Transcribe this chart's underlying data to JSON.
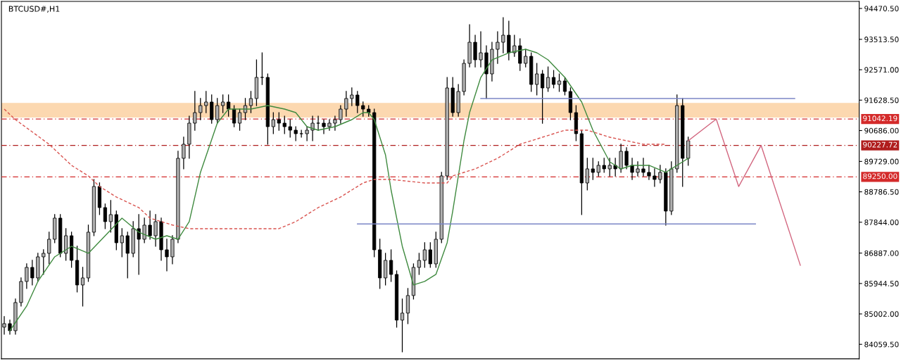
{
  "chart_data": {
    "type": "candlestick",
    "title": "BTCUSD#,H1",
    "tick_labels": "y",
    "grid": false,
    "categories": [
      null,
      null,
      null,
      null,
      null,
      null,
      null,
      null,
      null,
      null,
      null,
      null,
      null,
      null,
      null,
      null,
      null,
      null,
      null,
      null,
      null,
      null,
      null,
      null,
      null,
      null,
      null,
      null,
      null,
      null,
      null,
      null,
      null,
      null,
      null,
      null,
      null,
      null,
      null,
      null,
      null,
      null,
      null,
      null,
      null,
      null,
      null,
      null,
      null,
      null,
      null,
      null,
      null,
      null,
      null,
      null,
      null,
      null,
      null,
      null,
      null,
      null,
      null,
      null,
      null,
      null,
      null,
      null,
      null,
      null,
      null,
      null,
      null,
      null,
      null,
      null,
      null,
      null,
      null,
      null,
      null,
      null,
      null,
      null,
      null,
      null,
      null,
      null,
      null,
      null,
      null,
      null,
      null,
      null,
      null,
      null,
      null,
      null,
      null,
      null,
      null,
      null,
      null,
      null,
      null,
      null,
      null,
      null,
      null,
      null,
      null,
      null,
      null,
      null,
      null,
      null,
      null,
      null,
      null,
      null,
      null,
      null,
      null,
      null,
      null,
      null,
      null,
      null,
      null,
      null,
      null,
      null,
      null,
      null,
      null,
      null,
      null,
      null,
      null,
      null,
      null,
      null,
      null,
      null,
      null,
      null,
      null,
      null,
      null,
      null,
      null,
      null,
      null
    ],
    "ylim": [
      83609,
      94688
    ],
    "yticks": [
      {
        "value": 94470.5,
        "label": "94470.50"
      },
      {
        "value": 93513.5,
        "label": "93513.50"
      },
      {
        "value": 92571,
        "label": "92571.00"
      },
      {
        "value": 91628.5,
        "label": "91628.50"
      },
      {
        "value": 90686,
        "label": "90686.00"
      },
      {
        "value": 89729,
        "label": "89729.00"
      },
      {
        "value": 88786.5,
        "label": "88786.50"
      },
      {
        "value": 87844,
        "label": "87844.00"
      },
      {
        "value": 86887,
        "label": "86887.00"
      },
      {
        "value": 85944.5,
        "label": "85944.50"
      },
      {
        "value": 85002,
        "label": "85002.00"
      },
      {
        "value": 84059.5,
        "label": "84059.50"
      }
    ],
    "ref_lines": [
      {
        "axis": "y",
        "value": 91042.19,
        "label": "91042.19",
        "color": "#d42a2a",
        "line_style": "dashdot"
      },
      {
        "axis": "y",
        "value": 90227.72,
        "label": "90227.72",
        "color": "#b01e1e",
        "line_style": "dashdot"
      },
      {
        "axis": "y",
        "value": 89250.0,
        "label": "89250.00",
        "color": "#d42a2a",
        "line_style": "dashdot"
      }
    ],
    "bands": [
      {
        "axis": "y",
        "from": 91090,
        "to": 91540,
        "color": "#fcd8b0"
      }
    ],
    "ohlc": [
      [
        84591,
        84918,
        84372,
        84700
      ],
      [
        84700,
        84809,
        84372,
        84481
      ],
      [
        84481,
        85463,
        84372,
        85354
      ],
      [
        85354,
        86117,
        85245,
        86008
      ],
      [
        86008,
        86553,
        85790,
        86444
      ],
      [
        86444,
        86662,
        85899,
        86117
      ],
      [
        86117,
        86880,
        86008,
        86771
      ],
      [
        86771,
        86989,
        86226,
        86880
      ],
      [
        86880,
        87535,
        86553,
        87316
      ],
      [
        87316,
        88080,
        87207,
        87971
      ],
      [
        87971,
        88080,
        86771,
        86880
      ],
      [
        86880,
        87644,
        86662,
        87425
      ],
      [
        87425,
        87535,
        86444,
        86662
      ],
      [
        86662,
        87098,
        85681,
        85899
      ],
      [
        85899,
        86444,
        85245,
        86117
      ],
      [
        86117,
        87753,
        86008,
        87535
      ],
      [
        87535,
        89170,
        87425,
        88952
      ],
      [
        88952,
        89061,
        88080,
        88298
      ],
      [
        88298,
        88407,
        87644,
        87862
      ],
      [
        87862,
        88516,
        87535,
        88080
      ],
      [
        88080,
        88189,
        86989,
        87207
      ],
      [
        87207,
        87644,
        86771,
        87425
      ],
      [
        87425,
        87535,
        86117,
        86880
      ],
      [
        86880,
        87862,
        86771,
        87644
      ],
      [
        87644,
        88080,
        86226,
        87316
      ],
      [
        87316,
        87971,
        87207,
        87753
      ],
      [
        87753,
        88189,
        87316,
        87425
      ],
      [
        87425,
        88080,
        87098,
        87862
      ],
      [
        87862,
        87971,
        86662,
        86989
      ],
      [
        86989,
        87316,
        86335,
        86771
      ],
      [
        86771,
        87425,
        86553,
        87316
      ],
      [
        87316,
        90043,
        87207,
        89825
      ],
      [
        89825,
        90479,
        89498,
        90261
      ],
      [
        90261,
        91133,
        89825,
        90915
      ],
      [
        90915,
        91897,
        90697,
        91242
      ],
      [
        91242,
        91679,
        91024,
        91460
      ],
      [
        91460,
        91897,
        91242,
        91570
      ],
      [
        91570,
        91788,
        90915,
        91024
      ],
      [
        91024,
        91679,
        90915,
        91460
      ],
      [
        91460,
        91788,
        91242,
        91570
      ],
      [
        91570,
        91788,
        91133,
        91351
      ],
      [
        91351,
        91460,
        90806,
        90915
      ],
      [
        90915,
        91351,
        90697,
        91242
      ],
      [
        91242,
        91679,
        91024,
        91460
      ],
      [
        91460,
        91897,
        91242,
        91679
      ],
      [
        91679,
        92878,
        91460,
        92333
      ],
      [
        92333,
        93096,
        92115,
        92333
      ],
      [
        92333,
        92442,
        90261,
        90806
      ],
      [
        90806,
        91242,
        90588,
        91024
      ],
      [
        91024,
        91242,
        90697,
        90915
      ],
      [
        90915,
        91133,
        90588,
        90806
      ],
      [
        90806,
        91024,
        90479,
        90697
      ],
      [
        90697,
        90806,
        90370,
        90588
      ],
      [
        90588,
        90697,
        90479,
        90588
      ],
      [
        90588,
        90806,
        90370,
        90697
      ],
      [
        90697,
        91133,
        90370,
        90915
      ],
      [
        90915,
        91133,
        90697,
        90915
      ],
      [
        90915,
        91024,
        90588,
        90806
      ],
      [
        90806,
        91024,
        90697,
        90915
      ],
      [
        90915,
        91133,
        90697,
        91024
      ],
      [
        91024,
        91460,
        90915,
        91351
      ],
      [
        91351,
        91897,
        91133,
        91679
      ],
      [
        91679,
        92006,
        91460,
        91788
      ],
      [
        91788,
        91897,
        91242,
        91460
      ],
      [
        91460,
        91570,
        91133,
        91351
      ],
      [
        91351,
        91460,
        91133,
        91242
      ],
      [
        91242,
        91351,
        86771,
        86989
      ],
      [
        86989,
        87316,
        85790,
        86117
      ],
      [
        86117,
        86880,
        85899,
        86662
      ],
      [
        86662,
        86989,
        86008,
        86226
      ],
      [
        86226,
        86335,
        84591,
        84809
      ],
      [
        84809,
        85463,
        83827,
        85027
      ],
      [
        85027,
        85790,
        84700,
        85572
      ],
      [
        85572,
        86553,
        85463,
        86444
      ],
      [
        86444,
        86880,
        86226,
        86662
      ],
      [
        86662,
        87207,
        86444,
        86989
      ],
      [
        86989,
        87207,
        86444,
        86553
      ],
      [
        86553,
        87535,
        86444,
        87316
      ],
      [
        87316,
        89389,
        87207,
        89279
      ],
      [
        89279,
        92333,
        89170,
        92006
      ],
      [
        92006,
        92333,
        91133,
        91242
      ],
      [
        91242,
        92115,
        91133,
        91897
      ],
      [
        91897,
        92878,
        91788,
        92769
      ],
      [
        92769,
        93969,
        92660,
        93423
      ],
      [
        93423,
        93642,
        92660,
        92878
      ],
      [
        92878,
        93751,
        92660,
        93096
      ],
      [
        93096,
        93314,
        91679,
        92442
      ],
      [
        92442,
        93423,
        92224,
        93205
      ],
      [
        93205,
        93751,
        92769,
        93423
      ],
      [
        93423,
        94187,
        93096,
        93642
      ],
      [
        93642,
        94078,
        92878,
        93096
      ],
      [
        93096,
        93642,
        92987,
        93314
      ],
      [
        93314,
        93532,
        92551,
        92769
      ],
      [
        92769,
        93205,
        92660,
        92987
      ],
      [
        92987,
        93096,
        91897,
        92115
      ],
      [
        92115,
        92769,
        91788,
        92442
      ],
      [
        92442,
        92551,
        90915,
        92006
      ],
      [
        92006,
        92660,
        91897,
        92333
      ],
      [
        92333,
        92551,
        92006,
        92115
      ],
      [
        92115,
        92442,
        91897,
        92224
      ],
      [
        92224,
        92333,
        91788,
        91897
      ],
      [
        91897,
        92006,
        91024,
        91242
      ],
      [
        91242,
        91460,
        90370,
        90588
      ],
      [
        90588,
        90697,
        88080,
        89061
      ],
      [
        89061,
        89825,
        88843,
        89498
      ],
      [
        89498,
        89825,
        89170,
        89389
      ],
      [
        89389,
        89716,
        89279,
        89607
      ],
      [
        89607,
        89825,
        89389,
        89498
      ],
      [
        89498,
        89825,
        89279,
        89607
      ],
      [
        89607,
        89825,
        89279,
        89498
      ],
      [
        89498,
        90261,
        89389,
        90043
      ],
      [
        90043,
        90152,
        89498,
        89607
      ],
      [
        89607,
        89825,
        89170,
        89389
      ],
      [
        89389,
        89716,
        89279,
        89498
      ],
      [
        89498,
        89825,
        89279,
        89389
      ],
      [
        89389,
        89607,
        89170,
        89279
      ],
      [
        89279,
        89498,
        88952,
        89170
      ],
      [
        89170,
        89607,
        89061,
        89389
      ],
      [
        89389,
        89498,
        87753,
        88189
      ],
      [
        88189,
        89716,
        88080,
        89498
      ],
      [
        89498,
        91788,
        89389,
        91460
      ],
      [
        91460,
        91679,
        88952,
        89825
      ],
      [
        89825,
        90479,
        89607,
        90370
      ],
      null,
      null,
      null,
      null,
      null,
      null,
      null,
      null,
      null,
      null,
      null,
      null,
      null,
      null,
      null,
      null,
      null,
      null,
      null,
      null,
      null,
      null,
      null,
      null,
      null,
      null,
      null,
      null,
      null,
      null
    ],
    "series": [
      {
        "type": "line",
        "color": "#3f8a3f",
        "line_style": "solid",
        "values": [
          null,
          84481,
          null,
          null,
          85245,
          null,
          86008,
          null,
          null,
          86771,
          null,
          null,
          87098,
          null,
          null,
          86880,
          null,
          null,
          87425,
          null,
          null,
          87971,
          null,
          null,
          87535,
          null,
          null,
          87316,
          null,
          87425,
          null,
          87316,
          null,
          87862,
          null,
          89389,
          null,
          null,
          90915,
          null,
          91351,
          null,
          null,
          null,
          91351,
          null,
          null,
          91460,
          null,
          null,
          91351,
          null,
          91242,
          null,
          90806,
          null,
          90697,
          null,
          null,
          90806,
          null,
          null,
          91024,
          null,
          91242,
          91242,
          91024,
          null,
          89934,
          88843,
          null,
          87098,
          null,
          85899,
          null,
          86008,
          null,
          86226,
          null,
          87207,
          88189,
          null,
          90370,
          91242,
          null,
          92333,
          null,
          92878,
          null,
          null,
          93096,
          null,
          null,
          93205,
          null,
          93096,
          null,
          92878,
          null,
          null,
          92333,
          null,
          null,
          91570,
          null,
          90697,
          null,
          null,
          89716,
          null,
          89498,
          null,
          89607,
          null,
          null,
          89607,
          null,
          null,
          89389,
          null,
          null,
          89716,
          89825,
          null,
          null,
          null,
          null,
          null,
          null,
          null,
          null,
          null,
          null,
          null,
          null,
          null,
          null,
          null,
          null,
          null,
          null,
          null,
          null,
          null,
          null,
          null,
          null,
          null,
          null,
          null,
          null,
          null,
          null
        ]
      },
      {
        "type": "line",
        "color": "#d9534f",
        "line_style": "dashed",
        "values": [
          91351,
          null,
          91024,
          null,
          null,
          null,
          null,
          null,
          90261,
          null,
          null,
          null,
          89607,
          null,
          null,
          89279,
          null,
          88952,
          null,
          null,
          88625,
          null,
          null,
          null,
          88298,
          null,
          87971,
          null,
          null,
          null,
          87757,
          null,
          null,
          87644,
          null,
          null,
          null,
          87644,
          null,
          null,
          null,
          87644,
          null,
          null,
          87644,
          null,
          null,
          null,
          null,
          87644,
          null,
          null,
          87862,
          null,
          null,
          null,
          88298,
          null,
          null,
          null,
          88625,
          null,
          null,
          null,
          89061,
          null,
          89170,
          null,
          null,
          89170,
          null,
          null,
          null,
          null,
          null,
          89061,
          null,
          null,
          null,
          89061,
          89279,
          null,
          null,
          null,
          89498,
          null,
          null,
          null,
          89825,
          null,
          null,
          null,
          90261,
          null,
          null,
          null,
          90479,
          null,
          null,
          null,
          90697,
          null,
          90697,
          null,
          90697,
          null,
          null,
          null,
          90479,
          null,
          null,
          null,
          null,
          null,
          90261,
          null,
          null,
          null,
          90261,
          null,
          null,
          null,
          null,
          null,
          null,
          null,
          null,
          null,
          null,
          null,
          null,
          null,
          null,
          null,
          null,
          null,
          null,
          null,
          null,
          null,
          null,
          null,
          null,
          null,
          null,
          null,
          null,
          null,
          null,
          null,
          null,
          null,
          null
        ]
      },
      {
        "type": "line",
        "color": "#7b86c6",
        "line_style": "solid",
        "values": [
          null,
          null,
          null,
          null,
          null,
          null,
          null,
          null,
          null,
          null,
          null,
          null,
          null,
          null,
          null,
          null,
          null,
          null,
          null,
          null,
          null,
          null,
          null,
          null,
          null,
          null,
          null,
          null,
          null,
          null,
          null,
          null,
          null,
          null,
          null,
          null,
          null,
          null,
          null,
          null,
          null,
          null,
          null,
          null,
          null,
          null,
          null,
          null,
          null,
          null,
          null,
          null,
          null,
          null,
          null,
          null,
          null,
          null,
          null,
          null,
          null,
          null,
          null,
          null,
          null,
          null,
          null,
          null,
          null,
          null,
          null,
          null,
          null,
          null,
          null,
          null,
          null,
          null,
          null,
          null,
          null,
          null,
          null,
          null,
          null,
          91679,
          null,
          null,
          null,
          null,
          null,
          null,
          null,
          null,
          null,
          null,
          null,
          null,
          null,
          null,
          null,
          null,
          null,
          null,
          null,
          null,
          null,
          null,
          null,
          null,
          null,
          null,
          null,
          null,
          null,
          null,
          null,
          null,
          null,
          null,
          null,
          null,
          null,
          null,
          null,
          null,
          null,
          null,
          null,
          null,
          null,
          null,
          null,
          null,
          null,
          null,
          null,
          null,
          null,
          null,
          null,
          91679,
          null,
          null,
          null,
          null,
          null,
          null,
          null,
          null,
          null,
          null,
          null
        ]
      },
      {
        "type": "line",
        "color": "#7b86c6",
        "line_style": "solid",
        "values": [
          null,
          null,
          null,
          null,
          null,
          null,
          null,
          null,
          null,
          null,
          null,
          null,
          null,
          null,
          null,
          null,
          null,
          null,
          null,
          null,
          null,
          null,
          null,
          null,
          null,
          null,
          null,
          null,
          null,
          null,
          null,
          null,
          null,
          null,
          null,
          null,
          null,
          null,
          null,
          null,
          null,
          null,
          null,
          null,
          null,
          null,
          null,
          null,
          null,
          null,
          null,
          null,
          null,
          null,
          null,
          null,
          null,
          null,
          null,
          null,
          null,
          null,
          null,
          87790,
          null,
          null,
          null,
          null,
          null,
          null,
          null,
          null,
          null,
          null,
          null,
          null,
          null,
          null,
          null,
          null,
          null,
          null,
          null,
          null,
          null,
          null,
          null,
          null,
          null,
          null,
          null,
          null,
          null,
          null,
          null,
          null,
          null,
          null,
          null,
          null,
          null,
          null,
          null,
          null,
          null,
          null,
          null,
          null,
          null,
          null,
          null,
          null,
          null,
          null,
          null,
          null,
          null,
          null,
          null,
          null,
          null,
          null,
          null,
          null,
          null,
          null,
          null,
          null,
          null,
          null,
          null,
          null,
          null,
          null,
          87790,
          null,
          null,
          null,
          null,
          null,
          null,
          null,
          null,
          null,
          null,
          null,
          null,
          null,
          null,
          null,
          null,
          null,
          null
        ]
      },
      {
        "type": "line",
        "color": "#d2667f",
        "line_style": "solid",
        "values": [
          null,
          null,
          null,
          null,
          null,
          null,
          null,
          null,
          null,
          null,
          null,
          null,
          null,
          null,
          null,
          null,
          null,
          null,
          null,
          null,
          null,
          null,
          null,
          null,
          null,
          null,
          null,
          null,
          null,
          null,
          null,
          null,
          null,
          null,
          null,
          null,
          null,
          null,
          null,
          null,
          null,
          null,
          null,
          null,
          null,
          null,
          null,
          null,
          null,
          null,
          null,
          null,
          null,
          null,
          null,
          null,
          null,
          null,
          null,
          null,
          null,
          null,
          null,
          null,
          null,
          null,
          null,
          null,
          null,
          null,
          null,
          null,
          null,
          null,
          null,
          null,
          null,
          null,
          null,
          null,
          null,
          null,
          null,
          null,
          null,
          null,
          null,
          null,
          null,
          null,
          null,
          null,
          null,
          null,
          null,
          null,
          null,
          null,
          null,
          null,
          null,
          null,
          null,
          null,
          null,
          null,
          null,
          null,
          null,
          null,
          null,
          null,
          null,
          null,
          null,
          null,
          null,
          null,
          null,
          null,
          null,
          null,
          90370,
          null,
          null,
          null,
          null,
          91042,
          null,
          null,
          null,
          88950,
          null,
          null,
          null,
          90227,
          null,
          null,
          null,
          null,
          null,
          null,
          86510,
          null,
          null,
          null,
          null,
          null,
          null,
          null,
          null,
          null,
          null
        ]
      }
    ]
  }
}
